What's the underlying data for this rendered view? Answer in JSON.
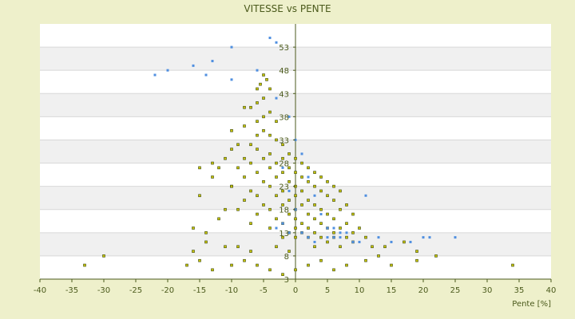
{
  "chart_data": {
    "type": "scatter",
    "title": "VITESSE vs PENTE",
    "xlabel": "Pente [%]",
    "ylabel": "",
    "xlim": [
      -40,
      40
    ],
    "ylim": [
      3,
      58
    ],
    "x_ticks": [
      "-40",
      "-35",
      "-30",
      "-25",
      "-20",
      "-15",
      "-10",
      "-5",
      "0",
      "5",
      "10",
      "15",
      "20",
      "25",
      "30",
      "35",
      "40"
    ],
    "y_ticks": [
      "3",
      "8",
      "13",
      "18",
      "23",
      "28",
      "33",
      "38",
      "43",
      "48",
      "53"
    ],
    "grid": true,
    "legend": "none",
    "colors": {
      "background": "#eef0cb",
      "plot_band_light": "#ffffff",
      "plot_band_dark": "#f0f0f0",
      "series_primary": "#c8c400",
      "series_primary_edge": "#3d4a12",
      "series_secondary": "#4f8fe0",
      "text": "#4b5a1c",
      "axis": "#4b5a1c"
    },
    "series": [
      {
        "role": "main",
        "points": [
          [
            -5,
            47
          ],
          [
            -4.5,
            46
          ],
          [
            -5.5,
            45
          ],
          [
            -6,
            44
          ],
          [
            -4,
            44
          ],
          [
            -5,
            42
          ],
          [
            -6,
            41
          ],
          [
            -7,
            40
          ],
          [
            -4,
            39
          ],
          [
            -5,
            38
          ],
          [
            -6,
            37
          ],
          [
            -3,
            37
          ],
          [
            -8,
            36
          ],
          [
            -5,
            35
          ],
          [
            -4,
            34
          ],
          [
            -6,
            34
          ],
          [
            -3,
            33
          ],
          [
            -9,
            32
          ],
          [
            -7,
            32
          ],
          [
            -2,
            32
          ],
          [
            -10,
            31
          ],
          [
            -6,
            31
          ],
          [
            -4,
            30
          ],
          [
            -1,
            30
          ],
          [
            -11,
            29
          ],
          [
            -8,
            29
          ],
          [
            -5,
            29
          ],
          [
            -2,
            29
          ],
          [
            0,
            29
          ],
          [
            -7,
            28
          ],
          [
            -3,
            28
          ],
          [
            1,
            28
          ],
          [
            -12,
            27
          ],
          [
            -9,
            27
          ],
          [
            -4,
            27
          ],
          [
            -1,
            27
          ],
          [
            2,
            27
          ],
          [
            -6,
            26
          ],
          [
            -2,
            26
          ],
          [
            0,
            26
          ],
          [
            3,
            26
          ],
          [
            -13,
            25
          ],
          [
            -8,
            25
          ],
          [
            -3,
            25
          ],
          [
            1,
            25
          ],
          [
            4,
            25
          ],
          [
            -5,
            24
          ],
          [
            -1,
            24
          ],
          [
            2,
            24
          ],
          [
            5,
            24
          ],
          [
            -10,
            23
          ],
          [
            -4,
            23
          ],
          [
            0,
            23
          ],
          [
            3,
            23
          ],
          [
            6,
            23
          ],
          [
            -7,
            22
          ],
          [
            -2,
            22
          ],
          [
            1,
            22
          ],
          [
            4,
            22
          ],
          [
            7,
            22
          ],
          [
            -15,
            21
          ],
          [
            -6,
            21
          ],
          [
            -3,
            21
          ],
          [
            0,
            21
          ],
          [
            5,
            21
          ],
          [
            -8,
            20
          ],
          [
            -1,
            20
          ],
          [
            2,
            20
          ],
          [
            6,
            20
          ],
          [
            -5,
            19
          ],
          [
            -2,
            19
          ],
          [
            1,
            19
          ],
          [
            3,
            19
          ],
          [
            8,
            19
          ],
          [
            -9,
            18
          ],
          [
            -4,
            18
          ],
          [
            0,
            18
          ],
          [
            4,
            18
          ],
          [
            7,
            18
          ],
          [
            -6,
            17
          ],
          [
            -1,
            17
          ],
          [
            2,
            17
          ],
          [
            5,
            17
          ],
          [
            9,
            17
          ],
          [
            -3,
            16
          ],
          [
            0,
            16
          ],
          [
            3,
            16
          ],
          [
            6,
            16
          ],
          [
            -7,
            15
          ],
          [
            -2,
            15
          ],
          [
            1,
            15
          ],
          [
            4,
            15
          ],
          [
            8,
            15
          ],
          [
            -4,
            14
          ],
          [
            0,
            14
          ],
          [
            2,
            14
          ],
          [
            5,
            14
          ],
          [
            7,
            14
          ],
          [
            10,
            14
          ],
          [
            -1,
            13
          ],
          [
            1,
            13
          ],
          [
            3,
            13
          ],
          [
            6,
            13
          ],
          [
            9,
            13
          ],
          [
            -2,
            12
          ],
          [
            0,
            12
          ],
          [
            2,
            12
          ],
          [
            4,
            12
          ],
          [
            6,
            12
          ],
          [
            8,
            12
          ],
          [
            11,
            12
          ],
          [
            -33,
            6
          ],
          [
            -30,
            8
          ],
          [
            -17,
            6
          ],
          [
            -15,
            7
          ],
          [
            -13,
            5
          ],
          [
            -10,
            6
          ],
          [
            -8,
            7
          ],
          [
            -6,
            6
          ],
          [
            -4,
            5
          ],
          [
            -2,
            4
          ],
          [
            0,
            5
          ],
          [
            2,
            6
          ],
          [
            4,
            7
          ],
          [
            6,
            5
          ],
          [
            8,
            6
          ],
          [
            11,
            7
          ],
          [
            13,
            8
          ],
          [
            15,
            6
          ],
          [
            19,
            7
          ],
          [
            22,
            8
          ],
          [
            34,
            6
          ],
          [
            -16,
            9
          ],
          [
            -14,
            11
          ],
          [
            -11,
            10
          ],
          [
            -9,
            10
          ],
          [
            -7,
            9
          ],
          [
            -3,
            10
          ],
          [
            -1,
            9
          ],
          [
            3,
            10
          ],
          [
            5,
            11
          ],
          [
            7,
            10
          ],
          [
            9,
            11
          ],
          [
            12,
            10
          ],
          [
            14,
            10
          ],
          [
            17,
            11
          ],
          [
            19,
            9
          ],
          [
            -16,
            14
          ],
          [
            -14,
            13
          ],
          [
            -12,
            16
          ],
          [
            -11,
            18
          ],
          [
            -10,
            23
          ],
          [
            -13,
            28
          ],
          [
            -15,
            27
          ],
          [
            -10,
            35
          ],
          [
            -8,
            40
          ]
        ]
      },
      {
        "role": "secondary",
        "points": [
          [
            -4,
            55
          ],
          [
            -3,
            54
          ],
          [
            -10,
            53
          ],
          [
            -13,
            50
          ],
          [
            -16,
            49
          ],
          [
            -20,
            48
          ],
          [
            -22,
            47
          ],
          [
            -14,
            47
          ],
          [
            -10,
            46
          ],
          [
            -6,
            48
          ],
          [
            -3,
            42
          ],
          [
            -1,
            38
          ],
          [
            0,
            33
          ],
          [
            1,
            30
          ],
          [
            -2,
            27
          ],
          [
            2,
            25
          ],
          [
            -1,
            22
          ],
          [
            3,
            21
          ],
          [
            0,
            18
          ],
          [
            4,
            17
          ],
          [
            -2,
            15
          ],
          [
            5,
            14
          ],
          [
            1,
            13
          ],
          [
            7,
            12
          ],
          [
            3,
            11
          ],
          [
            9,
            11
          ],
          [
            6,
            12
          ],
          [
            8,
            13
          ],
          [
            11,
            21
          ],
          [
            10,
            11
          ],
          [
            15,
            11
          ],
          [
            18,
            11
          ],
          [
            21,
            12
          ],
          [
            25,
            12
          ],
          [
            20,
            12
          ],
          [
            13,
            12
          ],
          [
            7,
            13
          ],
          [
            5,
            12
          ],
          [
            2,
            12
          ],
          [
            -1,
            13
          ],
          [
            -3,
            14
          ],
          [
            6,
            14
          ]
        ]
      }
    ]
  }
}
